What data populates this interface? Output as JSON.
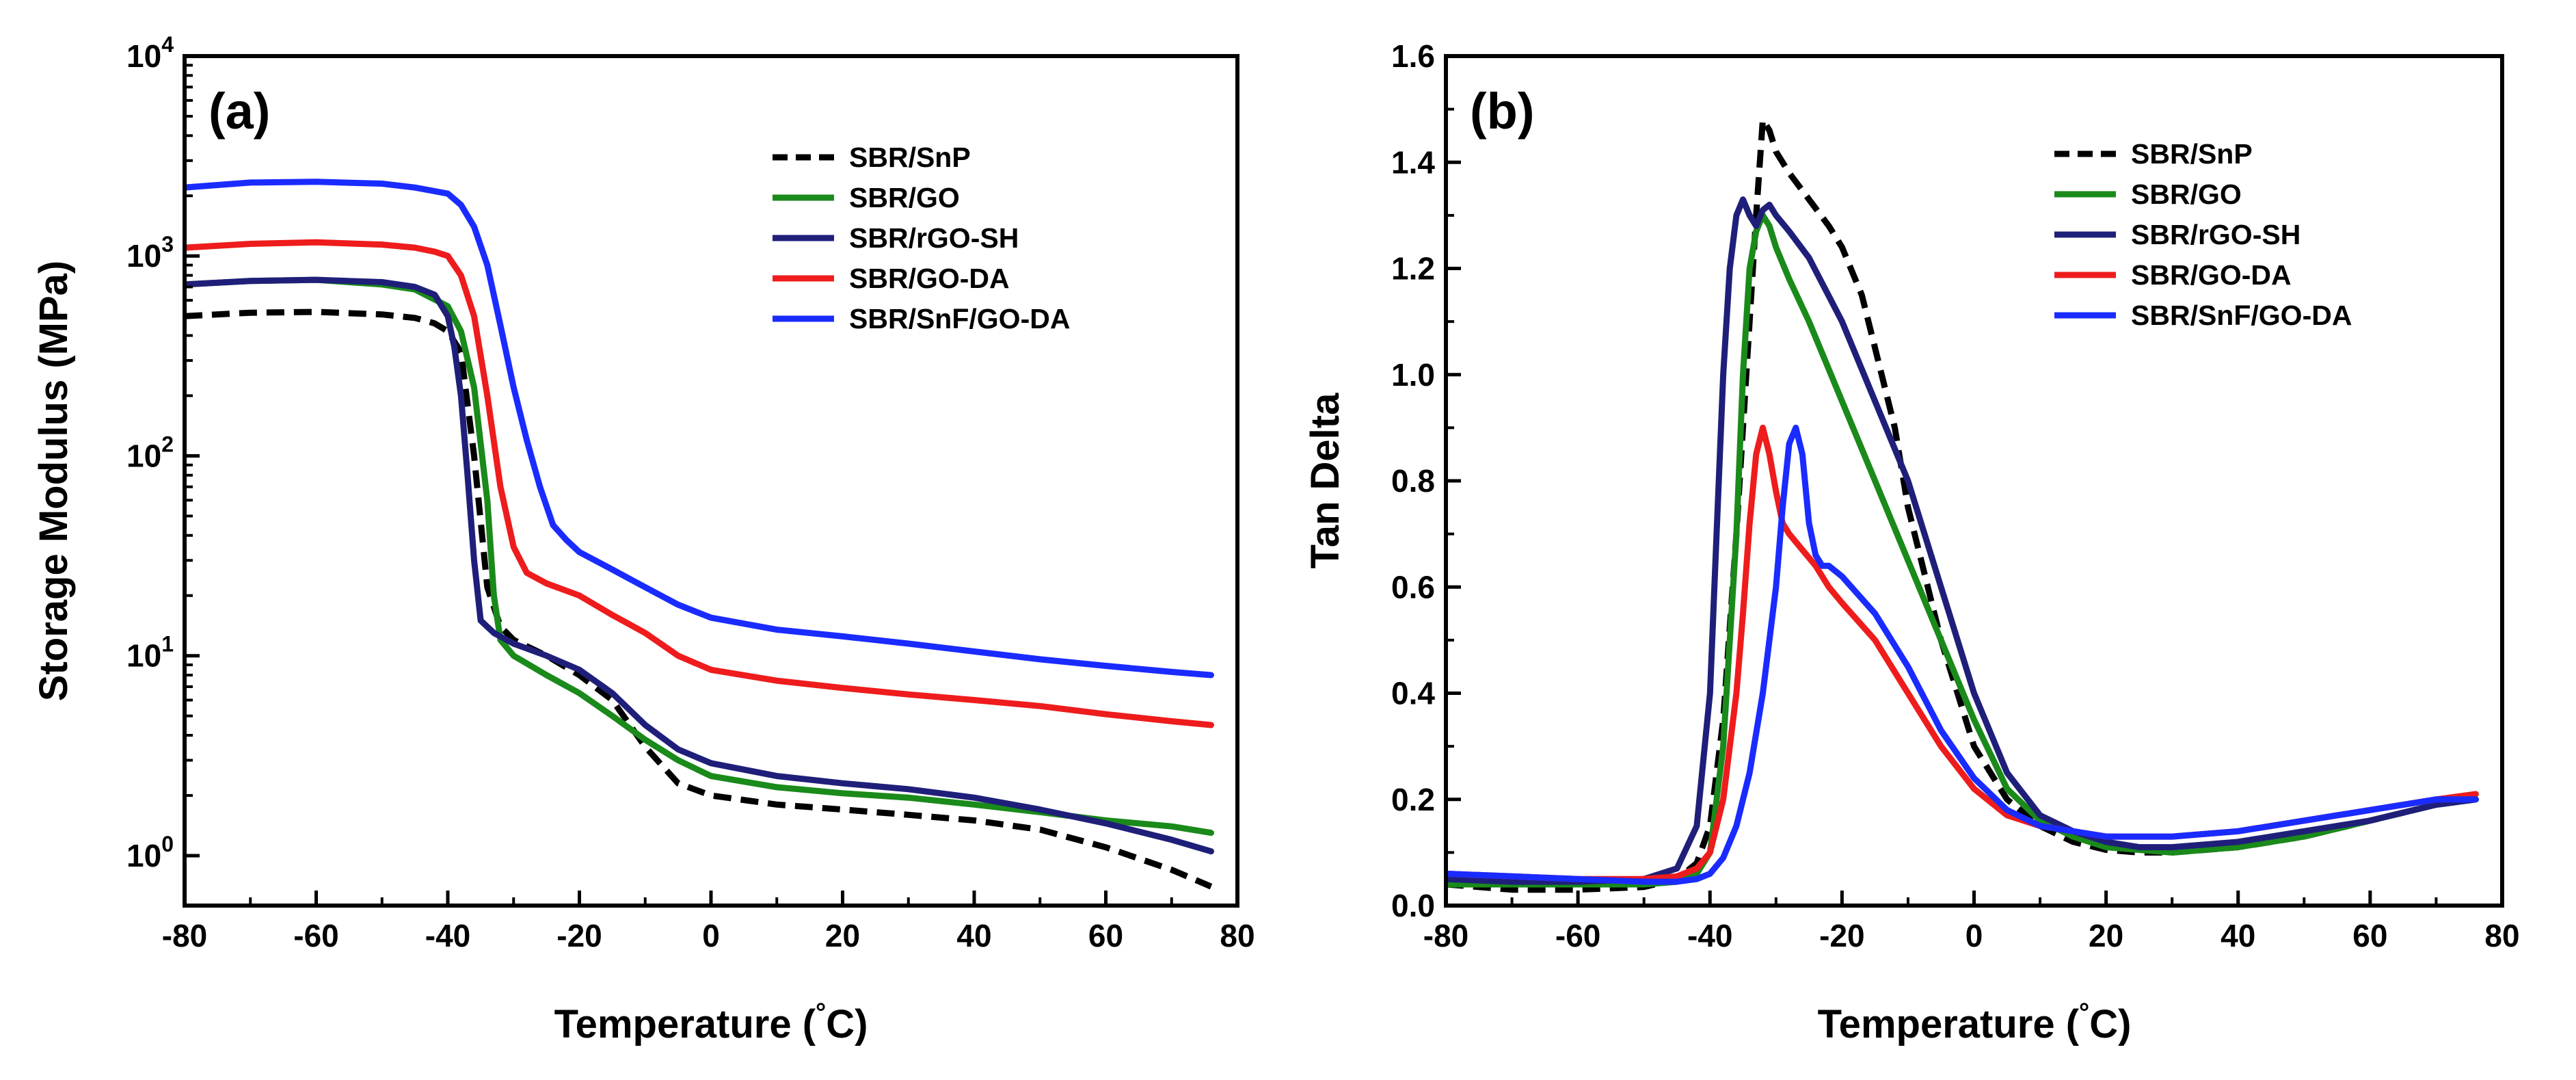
{
  "chart_data": [
    {
      "type": "line",
      "panel": "(a)",
      "xlabel": "Temperature (°C)",
      "ylabel": "Storage Modulus (MPa)",
      "xlim": [
        -80,
        80
      ],
      "ylim_log10": [
        -0.25,
        4
      ],
      "yscale": "log",
      "x_ticks": [
        -80,
        -60,
        -40,
        -20,
        0,
        20,
        40,
        60,
        80
      ],
      "x_tick_labels": [
        "-80",
        "-60",
        "-40",
        "-20",
        "0",
        "20",
        "40",
        "60",
        "80"
      ],
      "y_ticks": [
        {
          "base": "10",
          "exp": "0",
          "value": 1
        },
        {
          "base": "10",
          "exp": "1",
          "value": 10
        },
        {
          "base": "10",
          "exp": "2",
          "value": 100
        },
        {
          "base": "10",
          "exp": "3",
          "value": 1000
        },
        {
          "base": "10",
          "exp": "4",
          "value": 10000
        }
      ],
      "legend_position": "top-right",
      "series": [
        {
          "name": "SBR/SnP",
          "color": "#000000",
          "dash": true,
          "x": [
            -80,
            -70,
            -60,
            -50,
            -45,
            -42,
            -40,
            -38,
            -36,
            -34,
            -32,
            -30,
            -25,
            -20,
            -15,
            -10,
            -5,
            0,
            10,
            20,
            30,
            40,
            50,
            60,
            70,
            76
          ],
          "y": [
            500,
            520,
            525,
            510,
            490,
            460,
            420,
            330,
            100,
            22,
            14,
            12,
            10,
            8,
            6,
            3.5,
            2.3,
            2.0,
            1.8,
            1.7,
            1.6,
            1.5,
            1.35,
            1.1,
            0.85,
            0.7
          ]
        },
        {
          "name": "SBR/GO",
          "color": "#1a8a1a",
          "dash": false,
          "x": [
            -80,
            -70,
            -60,
            -50,
            -45,
            -40,
            -38,
            -36,
            -34,
            -33,
            -32,
            -30,
            -25,
            -20,
            -15,
            -10,
            -5,
            0,
            10,
            20,
            30,
            40,
            50,
            60,
            70,
            76
          ],
          "y": [
            720,
            750,
            760,
            720,
            680,
            560,
            420,
            220,
            60,
            20,
            12,
            10,
            8,
            6.5,
            5,
            3.8,
            3,
            2.5,
            2.2,
            2.05,
            1.95,
            1.8,
            1.65,
            1.5,
            1.4,
            1.3
          ]
        },
        {
          "name": "SBR/rGO-SH",
          "color": "#1f1f7a",
          "dash": false,
          "x": [
            -80,
            -70,
            -60,
            -50,
            -45,
            -42,
            -40,
            -39,
            -38,
            -37,
            -36,
            -35,
            -33,
            -30,
            -25,
            -20,
            -15,
            -10,
            -5,
            0,
            10,
            20,
            30,
            40,
            50,
            60,
            70,
            76
          ],
          "y": [
            720,
            750,
            760,
            740,
            700,
            640,
            500,
            350,
            200,
            80,
            30,
            15,
            13,
            11.5,
            10,
            8.5,
            6.5,
            4.5,
            3.4,
            2.9,
            2.5,
            2.3,
            2.15,
            1.95,
            1.7,
            1.45,
            1.2,
            1.05
          ]
        },
        {
          "name": "SBR/GO-DA",
          "color": "#ee1c1c",
          "dash": false,
          "x": [
            -80,
            -70,
            -60,
            -50,
            -45,
            -42,
            -40,
            -38,
            -36,
            -34,
            -32,
            -30,
            -28,
            -25,
            -20,
            -15,
            -10,
            -5,
            0,
            10,
            20,
            30,
            40,
            50,
            60,
            70,
            76
          ],
          "y": [
            1100,
            1150,
            1170,
            1140,
            1100,
            1050,
            1000,
            800,
            500,
            200,
            70,
            35,
            26,
            23,
            20,
            16,
            13,
            10,
            8.5,
            7.5,
            6.9,
            6.4,
            6.0,
            5.6,
            5.1,
            4.7,
            4.5
          ]
        },
        {
          "name": "SBR/SnF/GO-DA",
          "color": "#1a2bff",
          "dash": false,
          "x": [
            -80,
            -70,
            -60,
            -50,
            -45,
            -40,
            -38,
            -36,
            -34,
            -32,
            -30,
            -28,
            -26,
            -24,
            -22,
            -20,
            -15,
            -10,
            -5,
            0,
            10,
            20,
            30,
            40,
            50,
            60,
            70,
            76
          ],
          "y": [
            2200,
            2330,
            2350,
            2300,
            2200,
            2050,
            1800,
            1400,
            900,
            450,
            220,
            120,
            70,
            45,
            38,
            33,
            27,
            22,
            18,
            15.5,
            13.5,
            12.5,
            11.5,
            10.5,
            9.6,
            8.9,
            8.3,
            8.0
          ]
        }
      ]
    },
    {
      "type": "line",
      "panel": "(b)",
      "xlabel": "Temperature (°C)",
      "ylabel": "Tan Delta",
      "xlim": [
        -80,
        80
      ],
      "ylim": [
        0,
        1.6
      ],
      "x_ticks": [
        -80,
        -60,
        -40,
        -20,
        0,
        20,
        40,
        60,
        80
      ],
      "x_tick_labels": [
        "-80",
        "-60",
        "-40",
        "-20",
        "0",
        "20",
        "40",
        "60",
        "80"
      ],
      "y_ticks": [
        0,
        0.2,
        0.4,
        0.6,
        0.8,
        1.0,
        1.2,
        1.4,
        1.6
      ],
      "y_tick_labels": [
        "0.0",
        "0.2",
        "0.4",
        "0.6",
        "0.8",
        "1.0",
        "1.2",
        "1.4",
        "1.6"
      ],
      "legend_position": "top-right",
      "series": [
        {
          "name": "SBR/SnP",
          "color": "#000000",
          "dash": true,
          "x": [
            -80,
            -70,
            -60,
            -50,
            -45,
            -42,
            -40,
            -38,
            -36,
            -35,
            -34,
            -33,
            -32,
            -31,
            -30,
            -28,
            -25,
            -22,
            -20,
            -17,
            -15,
            -12,
            -10,
            -5,
            0,
            5,
            10,
            15,
            20,
            25,
            30,
            40,
            50,
            60,
            70,
            76
          ],
          "y": [
            0.04,
            0.03,
            0.03,
            0.035,
            0.05,
            0.08,
            0.15,
            0.35,
            0.7,
            0.9,
            1.1,
            1.3,
            1.48,
            1.46,
            1.42,
            1.38,
            1.33,
            1.28,
            1.24,
            1.15,
            1.05,
            0.9,
            0.75,
            0.5,
            0.3,
            0.2,
            0.15,
            0.12,
            0.105,
            0.1,
            0.1,
            0.11,
            0.13,
            0.16,
            0.19,
            0.2
          ]
        },
        {
          "name": "SBR/GO",
          "color": "#1a8a1a",
          "dash": false,
          "x": [
            -80,
            -70,
            -60,
            -50,
            -45,
            -42,
            -40,
            -38,
            -36,
            -35,
            -34,
            -33,
            -32,
            -31,
            -30,
            -28,
            -25,
            -20,
            -15,
            -10,
            -5,
            0,
            5,
            10,
            15,
            20,
            25,
            30,
            40,
            50,
            60,
            70,
            76
          ],
          "y": [
            0.04,
            0.04,
            0.04,
            0.04,
            0.045,
            0.06,
            0.1,
            0.3,
            0.7,
            1.0,
            1.2,
            1.27,
            1.3,
            1.28,
            1.24,
            1.18,
            1.1,
            0.95,
            0.8,
            0.65,
            0.5,
            0.35,
            0.22,
            0.16,
            0.13,
            0.11,
            0.105,
            0.1,
            0.11,
            0.13,
            0.16,
            0.19,
            0.2
          ]
        },
        {
          "name": "SBR/rGO-SH",
          "color": "#1f1f7a",
          "dash": false,
          "x": [
            -80,
            -70,
            -60,
            -50,
            -45,
            -42,
            -40,
            -39,
            -38,
            -37,
            -36,
            -35,
            -34,
            -33,
            -32,
            -31,
            -30,
            -28,
            -25,
            -20,
            -15,
            -10,
            -5,
            0,
            5,
            10,
            15,
            20,
            25,
            30,
            40,
            50,
            60,
            70,
            76
          ],
          "y": [
            0.05,
            0.045,
            0.045,
            0.05,
            0.07,
            0.15,
            0.4,
            0.7,
            1.0,
            1.2,
            1.3,
            1.33,
            1.3,
            1.28,
            1.31,
            1.32,
            1.3,
            1.27,
            1.22,
            1.1,
            0.95,
            0.8,
            0.6,
            0.4,
            0.25,
            0.17,
            0.14,
            0.12,
            0.11,
            0.11,
            0.12,
            0.14,
            0.16,
            0.19,
            0.2
          ]
        },
        {
          "name": "SBR/GO-DA",
          "color": "#ee1c1c",
          "dash": false,
          "x": [
            -80,
            -70,
            -60,
            -50,
            -45,
            -42,
            -40,
            -38,
            -36,
            -35,
            -34,
            -33,
            -32,
            -31,
            -30,
            -29,
            -28,
            -26,
            -24,
            -22,
            -20,
            -15,
            -10,
            -5,
            0,
            5,
            10,
            15,
            20,
            25,
            30,
            40,
            50,
            60,
            70,
            76
          ],
          "y": [
            0.06,
            0.055,
            0.05,
            0.05,
            0.055,
            0.07,
            0.1,
            0.2,
            0.4,
            0.55,
            0.72,
            0.85,
            0.9,
            0.85,
            0.78,
            0.72,
            0.7,
            0.67,
            0.64,
            0.6,
            0.57,
            0.5,
            0.4,
            0.3,
            0.22,
            0.17,
            0.15,
            0.14,
            0.13,
            0.13,
            0.13,
            0.14,
            0.16,
            0.18,
            0.2,
            0.21
          ]
        },
        {
          "name": "SBR/SnF/GO-DA",
          "color": "#1a2bff",
          "dash": false,
          "x": [
            -80,
            -70,
            -60,
            -50,
            -45,
            -42,
            -40,
            -38,
            -36,
            -34,
            -32,
            -30,
            -29,
            -28,
            -27,
            -26,
            -25,
            -24,
            -23,
            -22,
            -20,
            -15,
            -10,
            -5,
            0,
            5,
            10,
            15,
            20,
            25,
            30,
            40,
            50,
            60,
            70,
            76
          ],
          "y": [
            0.06,
            0.055,
            0.05,
            0.045,
            0.045,
            0.05,
            0.06,
            0.09,
            0.15,
            0.25,
            0.4,
            0.6,
            0.75,
            0.87,
            0.9,
            0.85,
            0.72,
            0.66,
            0.64,
            0.64,
            0.62,
            0.55,
            0.45,
            0.33,
            0.24,
            0.18,
            0.15,
            0.14,
            0.13,
            0.13,
            0.13,
            0.14,
            0.16,
            0.18,
            0.2,
            0.2
          ]
        }
      ]
    }
  ]
}
